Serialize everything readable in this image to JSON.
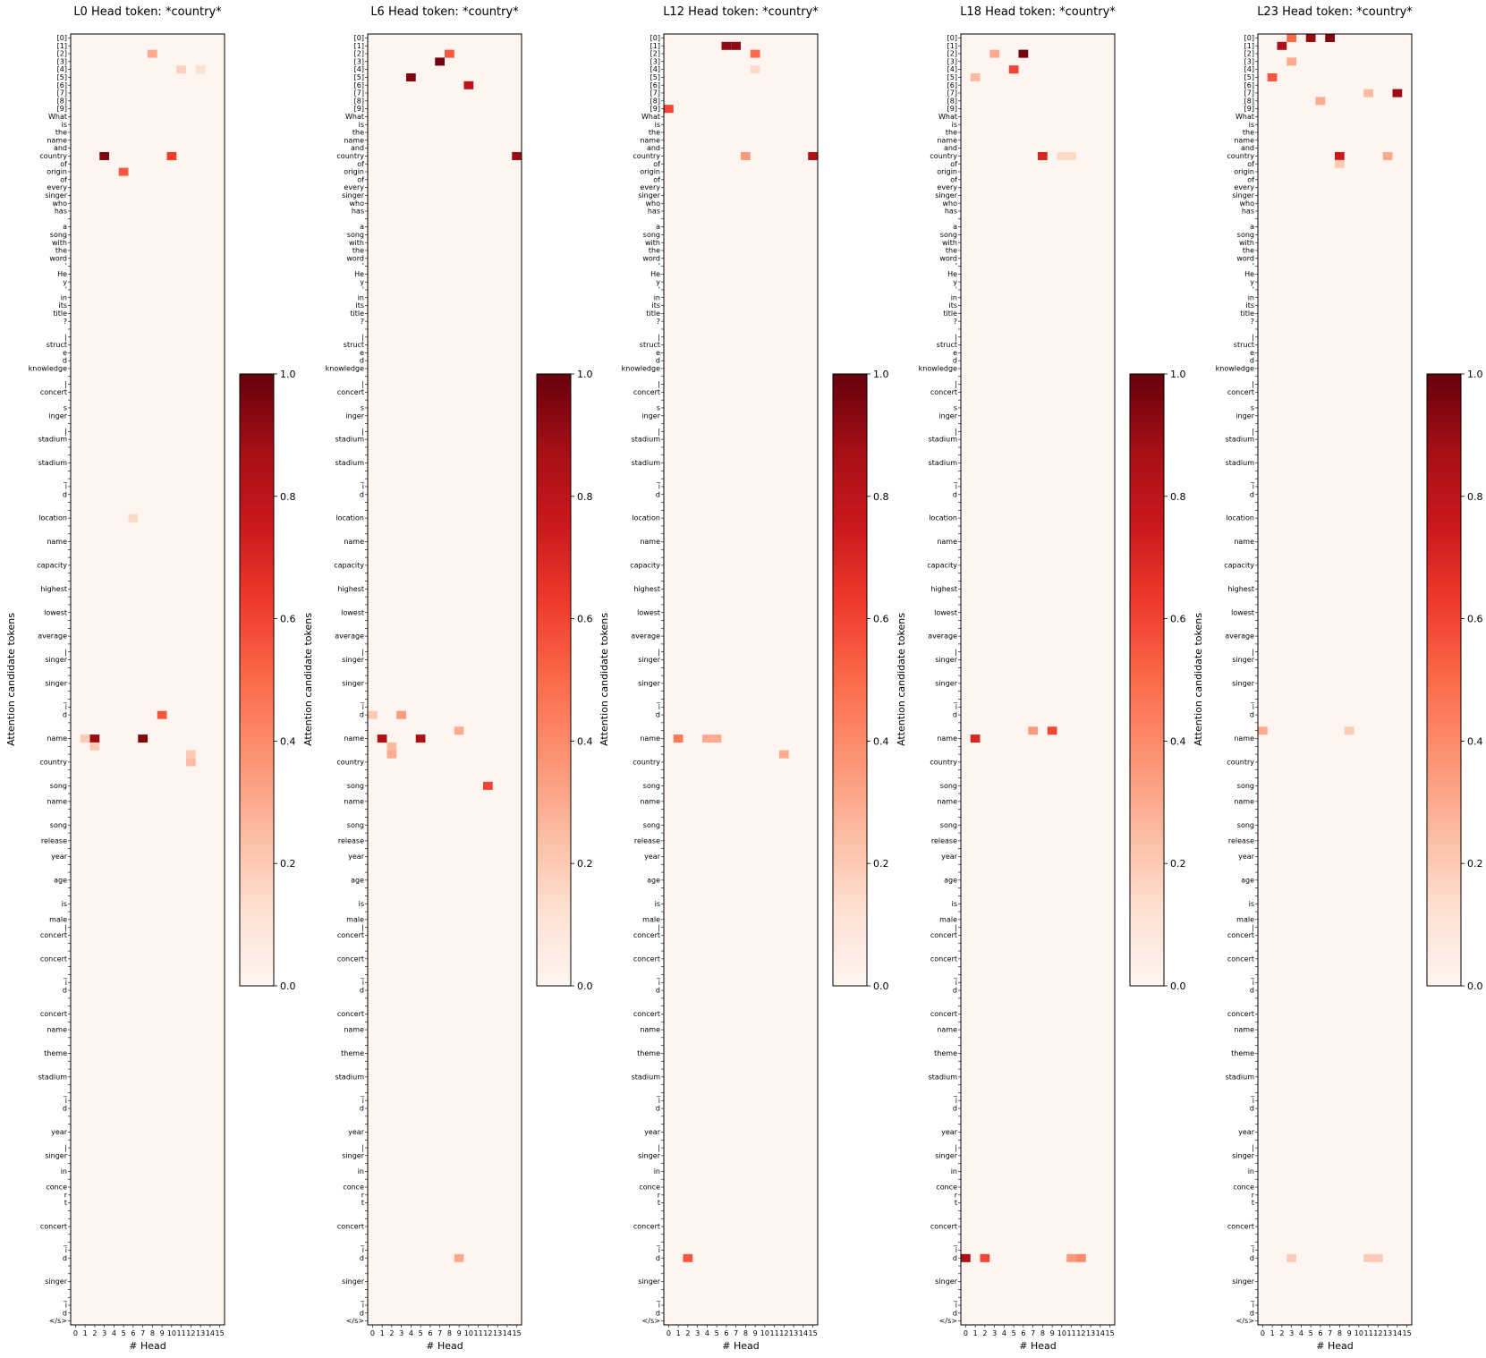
{
  "colors": {
    "cmap": [
      "#fff5f0",
      "#fee0d2",
      "#fcbba1",
      "#fc9272",
      "#fb6a4a",
      "#ef3b2c",
      "#cb181d",
      "#a50f15",
      "#67000d"
    ],
    "axis": "#000000"
  },
  "chart_data": [
    {
      "type": "heatmap",
      "title": "L0  Head token: *country*",
      "xlabel": "# Head",
      "ylabel": "Attention candidate tokens",
      "x_ticks": [
        "0",
        "1",
        "2",
        "3",
        "4",
        "5",
        "6",
        "7",
        "8",
        "9",
        "10",
        "11",
        "12",
        "13",
        "14",
        "15"
      ],
      "y_tick_labels": [
        "[0]",
        "[1]",
        "[2]",
        "[3]",
        "[4]",
        "[5]",
        "[6]",
        "[7]",
        "[8]",
        "[9]",
        "What",
        "is",
        "the",
        "name",
        "and",
        "country",
        "of",
        "origin",
        "of",
        "every",
        "singer",
        "who",
        "has",
        "",
        "a",
        "song",
        "with",
        "the",
        "word",
        "'",
        "He",
        "y",
        "'",
        "in",
        "its",
        "title",
        "?",
        "",
        "|",
        "struct",
        "e",
        "d",
        "knowledge",
        "",
        "|",
        "concert",
        "",
        "s",
        "inger",
        "",
        "|",
        "stadium",
        "",
        "",
        "stadium",
        "",
        "_",
        "i",
        "d",
        "",
        "",
        "location",
        "",
        "",
        "name",
        "",
        "",
        "capacity",
        "",
        "",
        "highest",
        "",
        "",
        "lowest",
        "",
        "",
        "average",
        "",
        "|",
        "singer",
        "",
        "",
        "singer",
        "",
        "_",
        "i",
        "d",
        "",
        "",
        "name",
        "",
        "",
        "country",
        "",
        "",
        "song",
        "",
        "name",
        "",
        "",
        "song",
        "",
        "release",
        "",
        "year",
        "",
        "",
        "age",
        "",
        "",
        "is",
        "",
        "male",
        "|",
        "concert",
        "",
        "",
        "concert",
        "",
        "_",
        "i",
        "d",
        "",
        "",
        "concert",
        "",
        "name",
        "",
        "",
        "theme",
        "",
        "",
        "stadium",
        "",
        "_",
        "i",
        "d",
        "",
        "",
        "year",
        "",
        "|",
        "singer",
        "",
        "in",
        "",
        "conce",
        "r",
        "t",
        "",
        "",
        "concert",
        "",
        "_",
        "i",
        "d",
        "",
        "",
        "singer",
        "",
        "_",
        "i",
        "d",
        "</s>"
      ],
      "colorbar": {
        "min": 0.0,
        "max": 1.0,
        "ticks": [
          "0.0",
          "0.2",
          "0.4",
          "0.6",
          "0.8",
          "1.0"
        ]
      },
      "hot_cells": [
        {
          "row": 15,
          "head": 3,
          "value": 0.95
        },
        {
          "row": 15,
          "head": 10,
          "value": 0.62
        },
        {
          "row": 17,
          "head": 5,
          "value": 0.55
        },
        {
          "row": 2,
          "head": 8,
          "value": 0.3
        },
        {
          "row": 4,
          "head": 11,
          "value": 0.18
        },
        {
          "row": 4,
          "head": 13,
          "value": 0.12
        },
        {
          "row": 86,
          "head": 9,
          "value": 0.55
        },
        {
          "row": 89,
          "head": 2,
          "value": 0.9
        },
        {
          "row": 89,
          "head": 7,
          "value": 0.95
        },
        {
          "row": 89,
          "head": 1,
          "value": 0.2
        },
        {
          "row": 90,
          "head": 2,
          "value": 0.2
        },
        {
          "row": 92,
          "head": 12,
          "value": 0.25
        },
        {
          "row": 61,
          "head": 6,
          "value": 0.15
        },
        {
          "row": 91,
          "head": 12,
          "value": 0.2
        }
      ]
    },
    {
      "type": "heatmap",
      "title": "L6  Head token: *country*",
      "xlabel": "# Head",
      "ylabel": "Attention candidate tokens",
      "x_ticks": [
        "0",
        "1",
        "2",
        "3",
        "4",
        "5",
        "6",
        "7",
        "8",
        "9",
        "10",
        "11",
        "12",
        "13",
        "14",
        "15"
      ],
      "colorbar": {
        "min": 0.0,
        "max": 1.0,
        "ticks": [
          "0.0",
          "0.2",
          "0.4",
          "0.6",
          "0.8",
          "1.0"
        ]
      },
      "hot_cells": [
        {
          "row": 3,
          "head": 7,
          "value": 0.98
        },
        {
          "row": 5,
          "head": 4,
          "value": 0.95
        },
        {
          "row": 2,
          "head": 8,
          "value": 0.55
        },
        {
          "row": 6,
          "head": 10,
          "value": 0.8
        },
        {
          "row": 15,
          "head": 15,
          "value": 0.9
        },
        {
          "row": 89,
          "head": 1,
          "value": 0.85
        },
        {
          "row": 89,
          "head": 5,
          "value": 0.85
        },
        {
          "row": 90,
          "head": 2,
          "value": 0.25
        },
        {
          "row": 91,
          "head": 2,
          "value": 0.3
        },
        {
          "row": 86,
          "head": 3,
          "value": 0.35
        },
        {
          "row": 86,
          "head": 0,
          "value": 0.2
        },
        {
          "row": 88,
          "head": 9,
          "value": 0.3
        },
        {
          "row": 95,
          "head": 12,
          "value": 0.6
        },
        {
          "row": 155,
          "head": 9,
          "value": 0.3
        }
      ]
    },
    {
      "type": "heatmap",
      "title": "L12  Head token: *country*",
      "xlabel": "# Head",
      "ylabel": "Attention candidate tokens",
      "x_ticks": [
        "0",
        "1",
        "2",
        "3",
        "4",
        "5",
        "6",
        "7",
        "8",
        "9",
        "10",
        "11",
        "12",
        "13",
        "14",
        "15"
      ],
      "colorbar": {
        "min": 0.0,
        "max": 1.0,
        "ticks": [
          "0.0",
          "0.2",
          "0.4",
          "0.6",
          "0.8",
          "1.0"
        ]
      },
      "hot_cells": [
        {
          "row": 1,
          "head": 6,
          "value": 0.92
        },
        {
          "row": 1,
          "head": 7,
          "value": 0.92
        },
        {
          "row": 2,
          "head": 9,
          "value": 0.5
        },
        {
          "row": 9,
          "head": 0,
          "value": 0.6
        },
        {
          "row": 15,
          "head": 8,
          "value": 0.35
        },
        {
          "row": 15,
          "head": 15,
          "value": 0.85
        },
        {
          "row": 89,
          "head": 1,
          "value": 0.45
        },
        {
          "row": 89,
          "head": 4,
          "value": 0.3
        },
        {
          "row": 89,
          "head": 5,
          "value": 0.3
        },
        {
          "row": 91,
          "head": 12,
          "value": 0.3
        },
        {
          "row": 155,
          "head": 2,
          "value": 0.55
        },
        {
          "row": 4,
          "head": 9,
          "value": 0.15
        }
      ]
    },
    {
      "type": "heatmap",
      "title": "L18  Head token: *country*",
      "xlabel": "# Head",
      "ylabel": "Attention candidate tokens",
      "x_ticks": [
        "0",
        "1",
        "2",
        "3",
        "4",
        "5",
        "6",
        "7",
        "8",
        "9",
        "10",
        "11",
        "12",
        "13",
        "14",
        "15"
      ],
      "colorbar": {
        "min": 0.0,
        "max": 1.0,
        "ticks": [
          "0.0",
          "0.2",
          "0.4",
          "0.6",
          "0.8",
          "1.0"
        ]
      },
      "hot_cells": [
        {
          "row": 2,
          "head": 6,
          "value": 0.98
        },
        {
          "row": 2,
          "head": 3,
          "value": 0.3
        },
        {
          "row": 4,
          "head": 5,
          "value": 0.6
        },
        {
          "row": 5,
          "head": 1,
          "value": 0.25
        },
        {
          "row": 15,
          "head": 8,
          "value": 0.7
        },
        {
          "row": 15,
          "head": 10,
          "value": 0.15
        },
        {
          "row": 15,
          "head": 11,
          "value": 0.15
        },
        {
          "row": 89,
          "head": 1,
          "value": 0.7
        },
        {
          "row": 88,
          "head": 7,
          "value": 0.35
        },
        {
          "row": 88,
          "head": 9,
          "value": 0.6
        },
        {
          "row": 155,
          "head": 0,
          "value": 0.85
        },
        {
          "row": 155,
          "head": 2,
          "value": 0.6
        },
        {
          "row": 155,
          "head": 11,
          "value": 0.35
        },
        {
          "row": 155,
          "head": 12,
          "value": 0.4
        }
      ]
    },
    {
      "type": "heatmap",
      "title": "L23  Head token: *country*",
      "xlabel": "# Head",
      "ylabel": "Attention candidate tokens",
      "x_ticks": [
        "0",
        "1",
        "2",
        "3",
        "4",
        "5",
        "6",
        "7",
        "8",
        "9",
        "10",
        "11",
        "12",
        "13",
        "14",
        "15"
      ],
      "colorbar": {
        "min": 0.0,
        "max": 1.0,
        "ticks": [
          "0.0",
          "0.2",
          "0.4",
          "0.6",
          "0.8",
          "1.0"
        ]
      },
      "hot_cells": [
        {
          "row": 0,
          "head": 3,
          "value": 0.5
        },
        {
          "row": 0,
          "head": 5,
          "value": 0.9
        },
        {
          "row": 0,
          "head": 7,
          "value": 0.95
        },
        {
          "row": 1,
          "head": 2,
          "value": 0.85
        },
        {
          "row": 3,
          "head": 3,
          "value": 0.3
        },
        {
          "row": 5,
          "head": 1,
          "value": 0.55
        },
        {
          "row": 7,
          "head": 14,
          "value": 0.9
        },
        {
          "row": 8,
          "head": 6,
          "value": 0.3
        },
        {
          "row": 7,
          "head": 11,
          "value": 0.25
        },
        {
          "row": 15,
          "head": 8,
          "value": 0.75
        },
        {
          "row": 15,
          "head": 13,
          "value": 0.3
        },
        {
          "row": 16,
          "head": 8,
          "value": 0.2
        },
        {
          "row": 88,
          "head": 0,
          "value": 0.3
        },
        {
          "row": 88,
          "head": 9,
          "value": 0.2
        },
        {
          "row": 155,
          "head": 3,
          "value": 0.2
        },
        {
          "row": 155,
          "head": 11,
          "value": 0.2
        },
        {
          "row": 155,
          "head": 12,
          "value": 0.2
        }
      ]
    }
  ]
}
